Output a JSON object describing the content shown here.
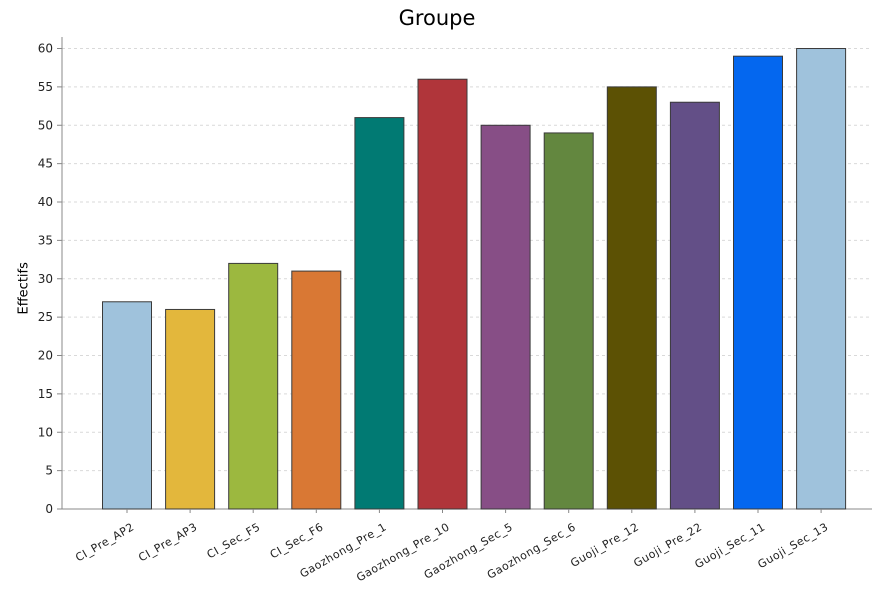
{
  "chart_data": {
    "type": "bar",
    "title": "Groupe",
    "xlabel": "",
    "ylabel": "Effectifs",
    "ylim": [
      0,
      60
    ],
    "yticks": [
      0,
      5,
      10,
      15,
      20,
      25,
      30,
      35,
      40,
      45,
      50,
      55,
      60
    ],
    "grid": true,
    "categories": [
      "CI_Pre_AP2",
      "CI_Pre_AP3",
      "CI_Sec_F5",
      "CI_Sec_F6",
      "Gaozhong_Pre_1",
      "Gaozhong_Pre_10",
      "Gaozhong_Sec_5",
      "Gaozhong_Sec_6",
      "Guoji_Pre_12",
      "Guoji_Pre_22",
      "Guoji_Sec_11",
      "Guoji_Sec_13"
    ],
    "values": [
      27,
      26,
      32,
      31,
      51,
      56,
      50,
      49,
      55,
      53,
      59,
      60
    ],
    "colors": [
      "#9fc2dc",
      "#e3b73c",
      "#9cb83f",
      "#d97834",
      "#017a73",
      "#b0353a",
      "#874e86",
      "#63873f",
      "#5c5104",
      "#634f87",
      "#0467ef",
      "#9fc2dc"
    ]
  }
}
